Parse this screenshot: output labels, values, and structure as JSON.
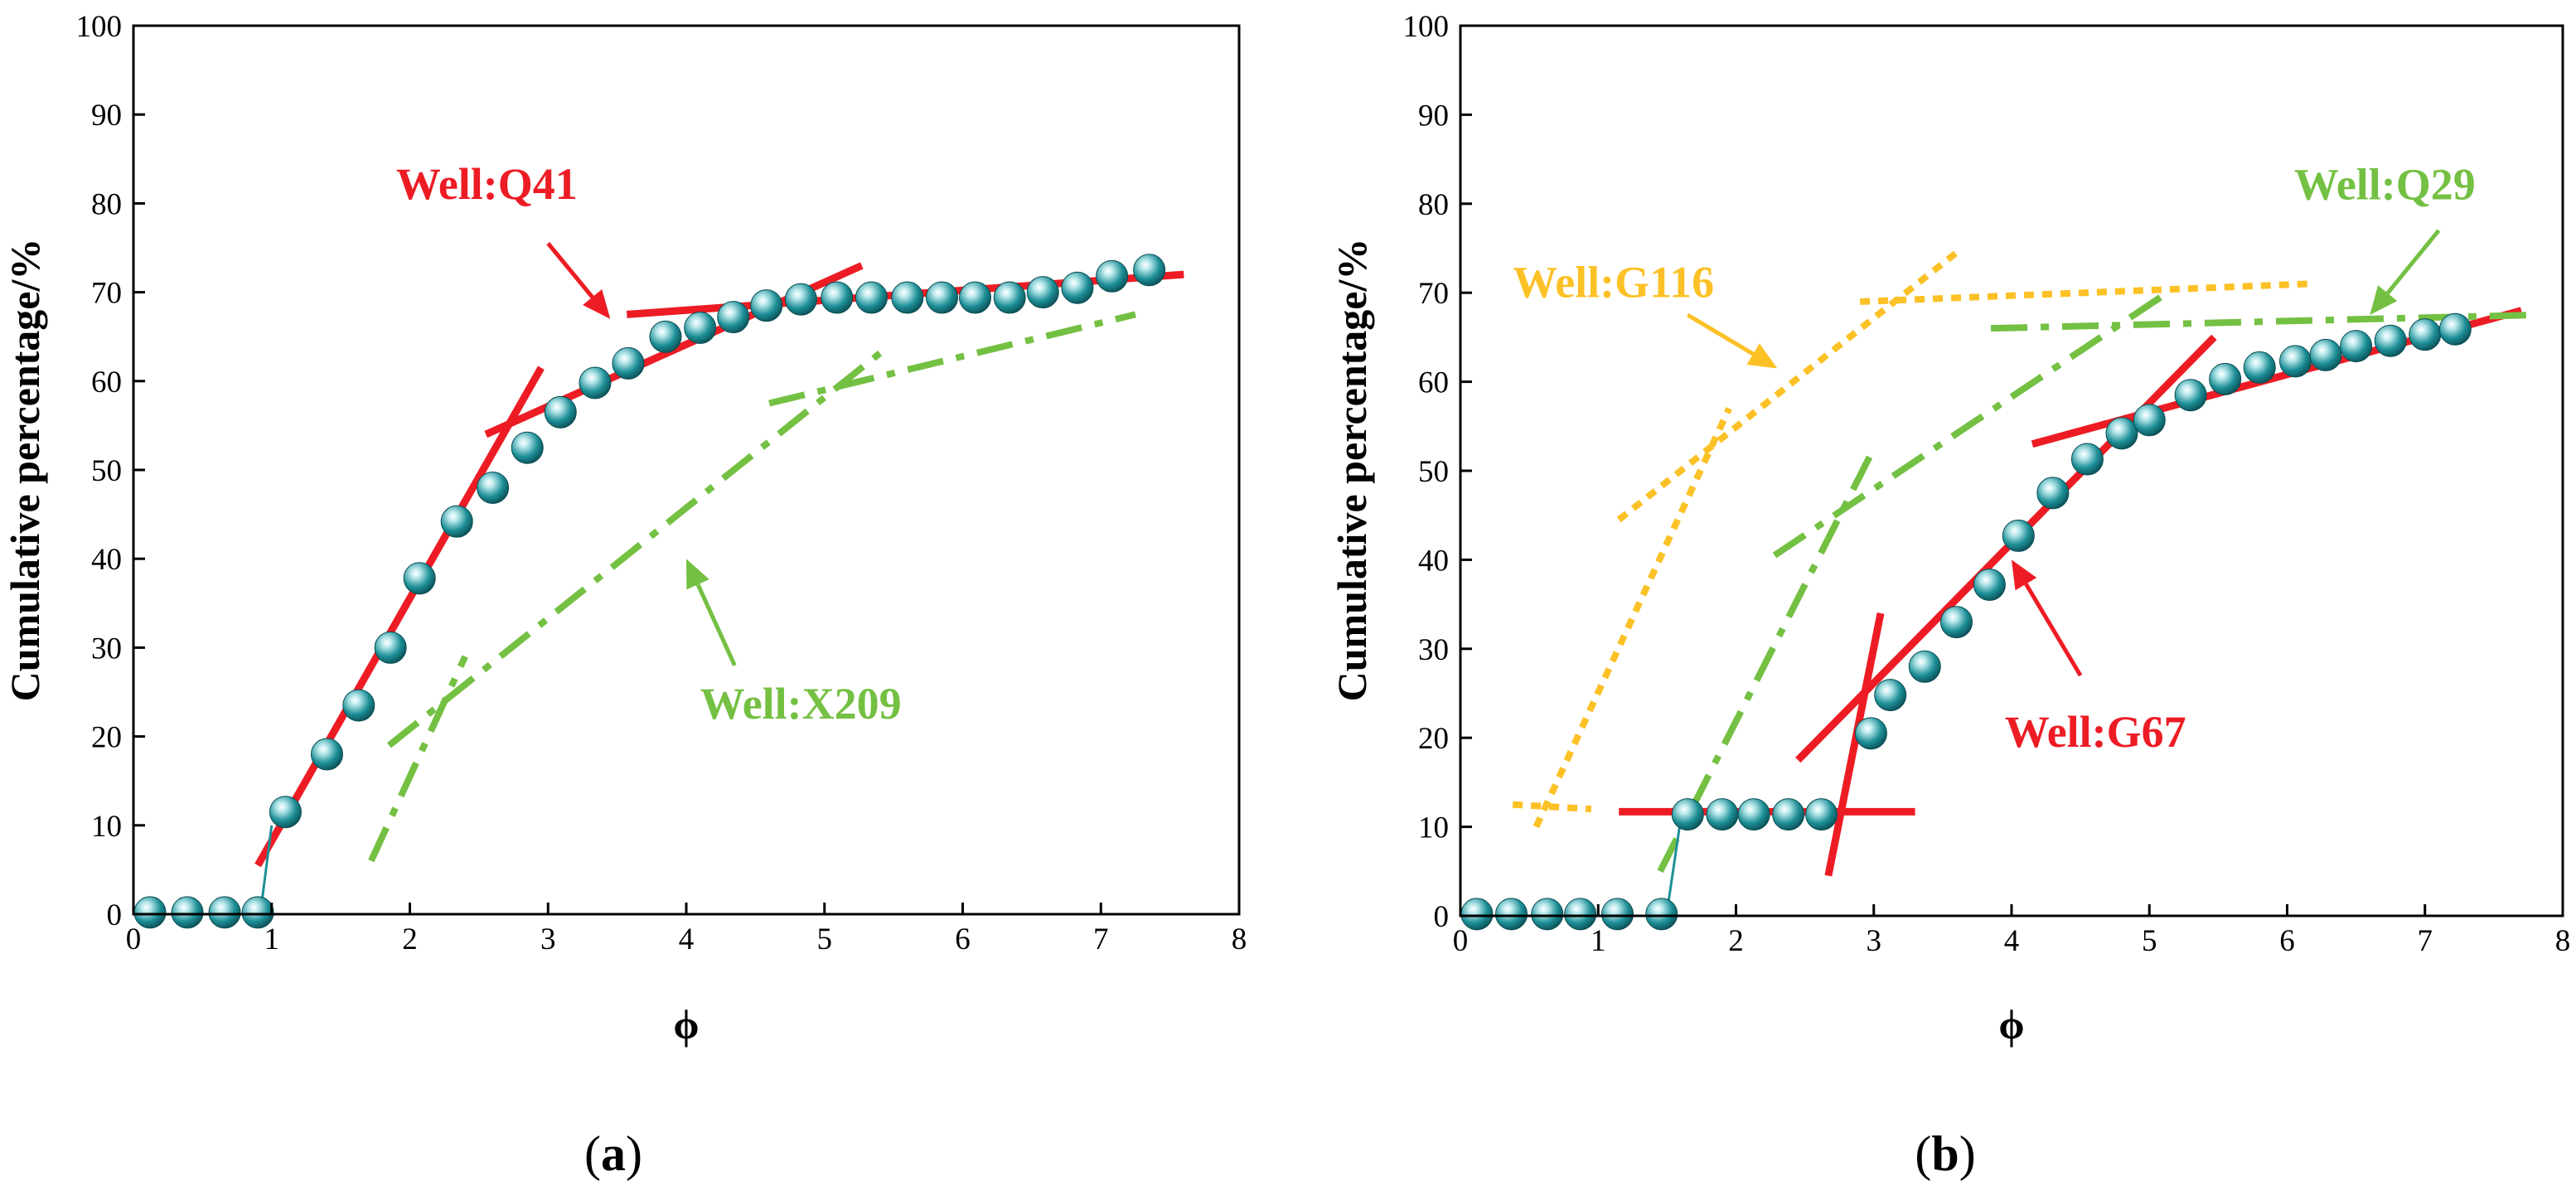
{
  "chart_data": [
    {
      "panel_label": "(a)",
      "panel_letter": "a",
      "type": "scatter",
      "xlabel": "ϕ",
      "ylabel": "Cumulative percentage/%",
      "xlim": [
        0,
        8
      ],
      "ylim": [
        0,
        100
      ],
      "x_ticks": [
        "0",
        "1",
        "2",
        "3",
        "4",
        "5",
        "6",
        "7",
        "8"
      ],
      "y_ticks": [
        "0",
        "10",
        "20",
        "30",
        "40",
        "50",
        "60",
        "70",
        "80",
        "90",
        "100"
      ],
      "series": [
        {
          "name": "Well:Q41",
          "marker_color": "#1d8f97",
          "connector": [
            [
              0.92,
              0.3
            ],
            [
              1.0,
              10.0
            ]
          ],
          "points": [
            [
              0.12,
              0.2
            ],
            [
              0.39,
              0.2
            ],
            [
              0.66,
              0.2
            ],
            [
              0.9,
              0.2
            ],
            [
              1.1,
              11.5
            ],
            [
              1.4,
              18.0
            ],
            [
              1.63,
              23.5
            ],
            [
              1.86,
              30.0
            ],
            [
              2.07,
              37.8
            ],
            [
              2.34,
              44.2
            ],
            [
              2.6,
              48.0
            ],
            [
              2.85,
              52.5
            ],
            [
              3.09,
              56.5
            ],
            [
              3.34,
              59.8
            ],
            [
              3.58,
              62.0
            ],
            [
              3.85,
              65.0
            ],
            [
              4.1,
              66.0
            ],
            [
              4.34,
              67.2
            ],
            [
              4.58,
              68.5
            ],
            [
              4.83,
              69.2
            ],
            [
              5.09,
              69.4
            ],
            [
              5.34,
              69.4
            ],
            [
              5.6,
              69.4
            ],
            [
              5.85,
              69.4
            ],
            [
              6.09,
              69.4
            ],
            [
              6.34,
              69.4
            ],
            [
              6.58,
              70.0
            ],
            [
              6.83,
              70.5
            ],
            [
              7.08,
              71.8
            ],
            [
              7.35,
              72.5
            ]
          ]
        },
        {
          "name": "Well:X209",
          "marker_color": "#74c043",
          "points": []
        }
      ],
      "fit_lines": [
        {
          "series": "Well:Q41",
          "style": "solid",
          "color": "#ed1c24",
          "points": [
            [
              0.9,
              5.5
            ],
            [
              2.95,
              61.5
            ]
          ]
        },
        {
          "series": "Well:Q41",
          "style": "solid",
          "color": "#ed1c24",
          "points": [
            [
              2.55,
              54.0
            ],
            [
              5.27,
              73.0
            ]
          ]
        },
        {
          "series": "Well:Q41",
          "style": "solid",
          "color": "#ed1c24",
          "points": [
            [
              3.57,
              67.5
            ],
            [
              7.6,
              72.0
            ]
          ]
        },
        {
          "series": "Well:X209",
          "style": "dashdot",
          "color": "#74c043",
          "points": [
            [
              1.72,
              6.0
            ],
            [
              2.4,
              29.0
            ]
          ]
        },
        {
          "series": "Well:X209",
          "style": "dashdot",
          "color": "#74c043",
          "points": [
            [
              1.85,
              19.0
            ],
            [
              5.47,
              64.0
            ]
          ]
        },
        {
          "series": "Well:X209",
          "style": "dashdot",
          "color": "#74c043",
          "points": [
            [
              4.6,
              57.5
            ],
            [
              7.25,
              67.5
            ]
          ]
        }
      ],
      "annotations": [
        {
          "text": "Well:Q41",
          "color": "#ed1c24",
          "text_at": [
            1.9,
            80.5
          ],
          "arrow_from": [
            3.0,
            75.5
          ],
          "arrow_to": [
            3.45,
            67.0
          ]
        },
        {
          "text": "Well:X209",
          "color": "#74c043",
          "text_at": [
            4.1,
            22.0
          ],
          "arrow_from": [
            4.35,
            28.0
          ],
          "arrow_to": [
            4.0,
            40.0
          ]
        }
      ]
    },
    {
      "panel_label": "(b)",
      "panel_letter": "b",
      "type": "scatter",
      "xlabel": "ϕ",
      "ylabel": "Cumulative percentage/%",
      "xlim": [
        0,
        8
      ],
      "ylim": [
        0,
        100
      ],
      "x_ticks": [
        "0",
        "1",
        "2",
        "3",
        "4",
        "5",
        "6",
        "7",
        "8"
      ],
      "y_ticks": [
        "0",
        "10",
        "20",
        "30",
        "40",
        "50",
        "60",
        "70",
        "80",
        "90",
        "100"
      ],
      "series": [
        {
          "name": "Well:G67",
          "marker_color": "#1d8f97",
          "connector": [
            [
              1.5,
              0.5
            ],
            [
              1.6,
              11.0
            ]
          ],
          "points": [
            [
              0.12,
              0.2
            ],
            [
              0.37,
              0.2
            ],
            [
              0.63,
              0.2
            ],
            [
              0.87,
              0.2
            ],
            [
              1.14,
              0.2
            ],
            [
              1.46,
              0.2
            ],
            [
              1.65,
              11.4
            ],
            [
              1.9,
              11.4
            ],
            [
              2.13,
              11.4
            ],
            [
              2.38,
              11.4
            ],
            [
              2.62,
              11.4
            ],
            [
              2.98,
              20.5
            ],
            [
              3.12,
              24.8
            ],
            [
              3.37,
              28.0
            ],
            [
              3.6,
              33.0
            ],
            [
              3.84,
              37.2
            ],
            [
              4.05,
              42.7
            ],
            [
              4.3,
              47.5
            ],
            [
              4.55,
              51.3
            ],
            [
              4.8,
              54.2
            ],
            [
              5.0,
              55.7
            ],
            [
              5.3,
              58.5
            ],
            [
              5.55,
              60.3
            ],
            [
              5.8,
              61.6
            ],
            [
              6.06,
              62.3
            ],
            [
              6.28,
              63.0
            ],
            [
              6.5,
              64.0
            ],
            [
              6.75,
              64.6
            ],
            [
              7.0,
              65.3
            ],
            [
              7.22,
              65.9
            ]
          ]
        },
        {
          "name": "Well:G116",
          "marker_color": "#fcc126",
          "points": []
        },
        {
          "name": "Well:Q29",
          "marker_color": "#74c043",
          "points": []
        }
      ],
      "fit_lines": [
        {
          "series": "Well:G67",
          "style": "solid",
          "color": "#ed1c24",
          "points": [
            [
              1.15,
              11.7
            ],
            [
              3.3,
              11.7
            ]
          ]
        },
        {
          "series": "Well:G67",
          "style": "solid",
          "color": "#ed1c24",
          "points": [
            [
              2.67,
              4.5
            ],
            [
              3.05,
              34.0
            ]
          ]
        },
        {
          "series": "Well:G67",
          "style": "solid",
          "color": "#ed1c24",
          "points": [
            [
              2.45,
              17.5
            ],
            [
              5.47,
              65.0
            ]
          ]
        },
        {
          "series": "Well:G67",
          "style": "solid",
          "color": "#ed1c24",
          "points": [
            [
              4.15,
              53.0
            ],
            [
              7.7,
              68.0
            ]
          ]
        },
        {
          "series": "Well:G116",
          "style": "dotted",
          "color": "#fcc126",
          "points": [
            [
              0.38,
              12.5
            ],
            [
              0.95,
              12.0
            ]
          ]
        },
        {
          "series": "Well:G116",
          "style": "dotted",
          "color": "#fcc126",
          "points": [
            [
              0.55,
              10.0
            ],
            [
              1.95,
              57.0
            ]
          ]
        },
        {
          "series": "Well:G116",
          "style": "dotted",
          "color": "#fcc126",
          "points": [
            [
              1.15,
              44.5
            ],
            [
              3.6,
              74.5
            ]
          ]
        },
        {
          "series": "Well:G116",
          "style": "dotted",
          "color": "#fcc126",
          "points": [
            [
              2.9,
              69.0
            ],
            [
              6.15,
              71.0
            ]
          ]
        },
        {
          "series": "Well:Q29",
          "style": "dashdot",
          "color": "#74c043",
          "points": [
            [
              1.45,
              5.0
            ],
            [
              3.0,
              52.5
            ]
          ]
        },
        {
          "series": "Well:Q29",
          "style": "dashdot",
          "color": "#74c043",
          "points": [
            [
              2.28,
              40.5
            ],
            [
              5.13,
              70.0
            ]
          ]
        },
        {
          "series": "Well:Q29",
          "style": "dashdot",
          "color": "#74c043",
          "points": [
            [
              3.85,
              66.0
            ],
            [
              7.78,
              67.5
            ]
          ]
        }
      ],
      "annotations": [
        {
          "text": "Well:G116",
          "color": "#fcc126",
          "text_at": [
            0.38,
            69.5
          ],
          "arrow_from": [
            1.65,
            67.5
          ],
          "arrow_to": [
            2.3,
            61.5
          ]
        },
        {
          "text": "Well:Q29",
          "color": "#74c043",
          "text_at": [
            6.05,
            80.5
          ],
          "arrow_from": [
            7.1,
            77.0
          ],
          "arrow_to": [
            6.6,
            67.5
          ]
        },
        {
          "text": "Well:G67",
          "color": "#ed1c24",
          "text_at": [
            3.95,
            19.0
          ],
          "arrow_from": [
            4.5,
            27.0
          ],
          "arrow_to": [
            4.0,
            40.0
          ]
        }
      ]
    }
  ]
}
